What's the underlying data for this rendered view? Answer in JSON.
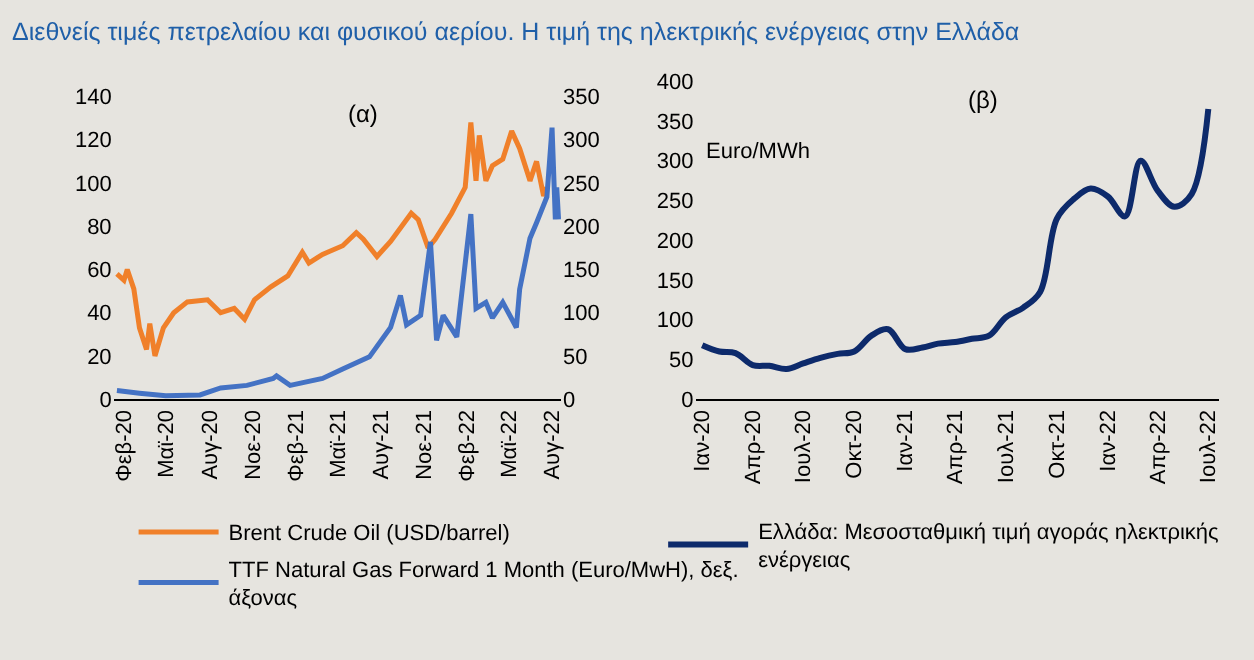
{
  "chart_data": [
    {
      "type": "line",
      "title": "(α)",
      "annotations": [
        "Διεθνείς τιμές πετρελαίου και φυσικού αερίου. Η τιμή της ηλεκτρικής ενέργειας στην Ελλάδα"
      ],
      "series": [
        {
          "name": "Brent Crude Oil (USD/barrel)",
          "color": "#f0802a",
          "x": [
            "2020-01-17",
            "2020-02-01",
            "2020-02-08",
            "2020-02-22",
            "2020-03-05",
            "2020-03-20",
            "2020-03-27",
            "2020-04-07",
            "2020-04-25",
            "2020-05-17",
            "2020-06-15",
            "2020-07-28",
            "2020-08-25",
            "2020-09-23",
            "2020-10-15",
            "2020-11-05",
            "2020-12-10",
            "2021-01-15",
            "2021-02-15",
            "2021-03-01",
            "2021-03-30",
            "2021-05-12",
            "2021-06-10",
            "2021-06-25",
            "2021-07-24",
            "2021-08-22",
            "2021-10-05",
            "2021-10-20",
            "2021-11-10",
            "2021-11-25",
            "2021-12-30",
            "2022-01-28",
            "2022-02-09",
            "2022-02-20",
            "2022-02-27",
            "2022-03-13",
            "2022-03-27",
            "2022-04-18",
            "2022-05-07",
            "2022-05-24",
            "2022-06-15",
            "2022-06-29",
            "2022-07-14",
            "2022-07-21"
          ],
          "values": [
            58,
            55,
            60,
            51,
            33,
            23,
            35,
            20,
            33,
            40,
            45,
            46,
            40,
            42,
            37,
            46,
            52,
            57,
            68,
            63,
            67,
            71,
            77,
            74,
            66,
            73,
            86,
            83,
            70,
            74,
            86,
            98,
            128,
            101,
            122,
            101,
            108,
            111,
            124,
            116,
            101,
            110,
            94,
            98
          ]
        },
        {
          "name": "TTF Natural Gas Forward 1 Month (Euro/MwH), δεξ. άξονας",
          "color": "#4472c4",
          "axis": "y2",
          "x": [
            "2020-01-17",
            "2020-03-05",
            "2020-04-30",
            "2020-07-12",
            "2020-08-25",
            "2020-10-20",
            "2020-12-15",
            "2020-12-22",
            "2021-01-20",
            "2021-03-30",
            "2021-05-12",
            "2021-07-08",
            "2021-08-22",
            "2021-09-12",
            "2021-09-25",
            "2021-10-25",
            "2021-11-15",
            "2021-11-28",
            "2021-12-12",
            "2022-01-10",
            "2022-02-09",
            "2022-02-20",
            "2022-03-13",
            "2022-03-27",
            "2022-04-18",
            "2022-05-17",
            "2022-05-24",
            "2022-06-15",
            "2022-06-29",
            "2022-07-21",
            "2022-08-01",
            "2022-08-08",
            "2022-08-11",
            "2022-08-15"
          ],
          "values": [
            10,
            7,
            4,
            5,
            13,
            16,
            24,
            27,
            16,
            24,
            35,
            49,
            83,
            120,
            86,
            97,
            182,
            68,
            97,
            72,
            214,
            105,
            112,
            94,
            112,
            83,
            127,
            186,
            204,
            234,
            314,
            208,
            245,
            208
          ]
        }
      ],
      "xlim": [
        "2020-01-10",
        "2022-08-20"
      ],
      "xticks": [
        {
          "value": "2020-02-01",
          "label": "Φεβ-20"
        },
        {
          "value": "2020-05-01",
          "label": "Μαϊ-20"
        },
        {
          "value": "2020-08-01",
          "label": "Αυγ-20"
        },
        {
          "value": "2020-11-01",
          "label": "Νοε-20"
        },
        {
          "value": "2021-02-01",
          "label": "Φεβ-21"
        },
        {
          "value": "2021-05-01",
          "label": "Μαϊ-21"
        },
        {
          "value": "2021-08-01",
          "label": "Αυγ-21"
        },
        {
          "value": "2021-11-01",
          "label": "Νοε-21"
        },
        {
          "value": "2022-02-01",
          "label": "Φεβ-22"
        },
        {
          "value": "2022-05-01",
          "label": "Μαϊ-22"
        },
        {
          "value": "2022-08-01",
          "label": "Αυγ-22"
        }
      ],
      "ylim": [
        0,
        140
      ],
      "yticks": [
        0,
        20,
        40,
        60,
        80,
        100,
        120,
        140
      ],
      "y2lim": [
        0,
        350
      ],
      "y2ticks": [
        0,
        50,
        100,
        150,
        200,
        250,
        300,
        350
      ],
      "grid": false,
      "legend": "bottom",
      "line_style": "solid"
    },
    {
      "type": "line",
      "title": "(β)",
      "ylabel": "Euro/MWh",
      "x": [
        "2020-01",
        "2020-02",
        "2020-03",
        "2020-04",
        "2020-05",
        "2020-06",
        "2020-07",
        "2020-08",
        "2020-09",
        "2020-10",
        "2020-11",
        "2020-12",
        "2021-01",
        "2021-02",
        "2021-03",
        "2021-04",
        "2021-05",
        "2021-06",
        "2021-07",
        "2021-08",
        "2021-09",
        "2021-10",
        "2021-11",
        "2021-12",
        "2022-01",
        "2022-02",
        "2022-03",
        "2022-04",
        "2022-05",
        "2022-06",
        "2022-07"
      ],
      "series": [
        {
          "name": "Ελλάδα: Μεσοσταθμική τιμή αγοράς ηλεκτρικής ενέργειας",
          "color": "#0d2a6b",
          "values": [
            68,
            60,
            58,
            43,
            42,
            38,
            45,
            52,
            57,
            60,
            80,
            88,
            63,
            65,
            70,
            72,
            76,
            80,
            103,
            115,
            135,
            227,
            252,
            265,
            255,
            230,
            300,
            262,
            242,
            258,
            365
          ]
        }
      ],
      "xlim": [
        "2019-12-20",
        "2022-07-20"
      ],
      "xticks": [
        {
          "value": "2020-01-01",
          "label": "Ιαν-20"
        },
        {
          "value": "2020-04-01",
          "label": "Απρ-20"
        },
        {
          "value": "2020-07-01",
          "label": "Ιουλ-20"
        },
        {
          "value": "2020-10-01",
          "label": "Οκτ-20"
        },
        {
          "value": "2021-01-01",
          "label": "Ιαν-21"
        },
        {
          "value": "2021-04-01",
          "label": "Απρ-21"
        },
        {
          "value": "2021-07-01",
          "label": "Ιουλ-21"
        },
        {
          "value": "2021-10-01",
          "label": "Οκτ-21"
        },
        {
          "value": "2022-01-01",
          "label": "Ιαν-22"
        },
        {
          "value": "2022-04-01",
          "label": "Απρ-22"
        },
        {
          "value": "2022-07-01",
          "label": "Ιουλ-22"
        }
      ],
      "ylim": [
        0,
        400
      ],
      "yticks": [
        0,
        50,
        100,
        150,
        200,
        250,
        300,
        350,
        400
      ],
      "grid": false,
      "legend": "bottom",
      "line_style": "solid"
    }
  ]
}
